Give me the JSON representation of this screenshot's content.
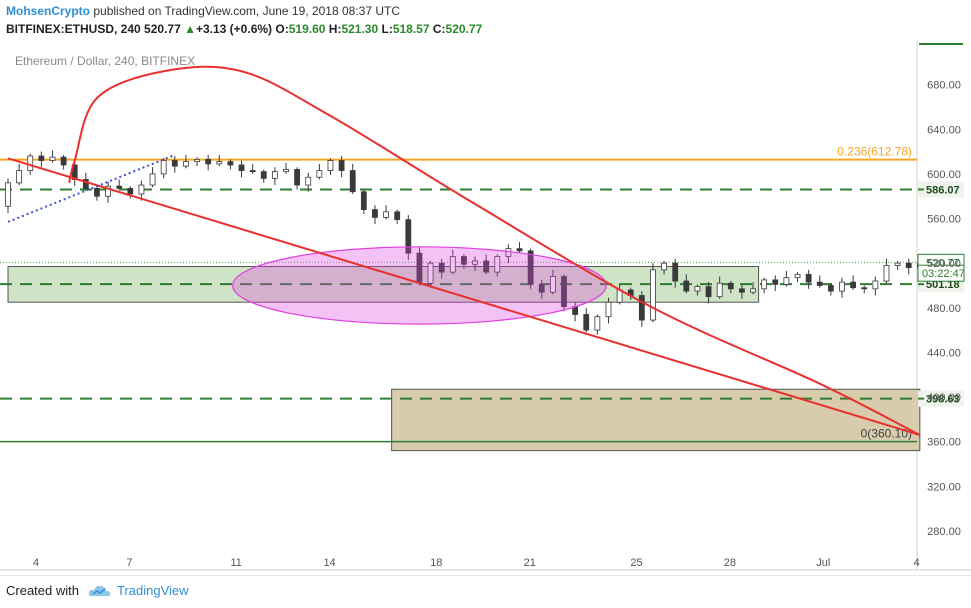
{
  "header": {
    "author": "MohsenCrypto",
    "published": "published on TradingView.com, June 19, 2018 08:37 UTC",
    "symbol": "BITFINEX:ETHUSD, 240",
    "last": "520.77",
    "change": "+3.13 (+0.6%)",
    "o_label": "O:",
    "o": "519.60",
    "h_label": "H:",
    "h": "521.30",
    "l_label": "L:",
    "l": "518.57",
    "c_label": "C:",
    "c": "520.77"
  },
  "footer": {
    "created_with": "Created with",
    "brand": "TradingView"
  },
  "colors": {
    "up": "#2a8a2a",
    "fib": "#f5a623",
    "green_line": "#2f7d32",
    "red": "#e8302e",
    "ellipse": "#e040e0",
    "dotted": "#3f4fd6",
    "zone_green": "#cfe3c6",
    "zone_tan": "#d9ccac",
    "label_dark": "#1d4b1e",
    "price_bg": "#1e6b2a"
  },
  "chart_data": {
    "type": "candlestick",
    "title": "Ethereum / Dollar, 240, BITFINEX",
    "ylim": [
      245,
      720
    ],
    "xlim": [
      0,
      82
    ],
    "y_ticks": [
      280,
      320,
      360,
      400,
      440,
      480,
      520,
      560,
      600,
      640,
      680
    ],
    "x_ticks": [
      {
        "label": "4",
        "x": 0
      },
      {
        "label": "7",
        "x": 7
      },
      {
        "label": "11",
        "x": 15
      },
      {
        "label": "14",
        "x": 22
      },
      {
        "label": "18",
        "x": 30
      },
      {
        "label": "21",
        "x": 37
      },
      {
        "label": "25",
        "x": 45
      },
      {
        "label": "28",
        "x": 52
      },
      {
        "label": "Jul",
        "x": 59
      },
      {
        "label": "4",
        "x": 66
      }
    ],
    "closes": [
      571,
      592,
      603,
      616,
      612,
      615,
      608,
      595,
      587,
      580,
      589,
      587,
      582,
      590,
      600,
      612,
      607,
      611,
      613,
      609,
      611,
      608,
      603,
      602,
      596,
      602,
      604,
      590,
      597,
      603,
      612,
      603,
      584,
      568,
      561,
      566,
      559,
      529,
      502,
      520,
      512,
      526,
      519,
      522,
      512,
      526,
      533,
      531,
      501,
      494,
      508,
      481,
      474,
      460,
      472,
      485,
      496,
      491,
      469,
      514,
      520,
      504,
      495,
      499,
      490,
      502,
      497,
      494,
      497,
      505,
      501,
      507,
      510,
      503,
      500,
      495,
      503,
      498,
      497,
      504,
      518,
      520,
      516,
      520,
      521
    ],
    "levels": [
      {
        "value": 612.78,
        "label": "0.236(612.78)",
        "style": "fib"
      },
      {
        "value": 586.07,
        "label": "586.07",
        "style": "dashed"
      },
      {
        "value": 501.18,
        "label": "501.18",
        "style": "dashed"
      },
      {
        "value": 398.63,
        "label": "398.63",
        "style": "dashed"
      },
      {
        "value": 360.1,
        "label": "0(360.10)",
        "style": "solid"
      }
    ],
    "current_price": {
      "value": 520.77,
      "label": "520.77"
    },
    "countdown": {
      "value": 511,
      "label": "03:22:47"
    },
    "zones": [
      {
        "x0": 0,
        "x1": 67.5,
        "y0": 485,
        "y1": 517,
        "kind": "green"
      },
      {
        "x0": 34.5,
        "x1": 82,
        "y0": 352,
        "y1": 407,
        "kind": "tan"
      }
    ],
    "ellipse": {
      "cx": 37,
      "cy": 500,
      "rx": 15,
      "ry": 33
    },
    "trendline": {
      "points": [
        [
          0,
          614
        ],
        [
          82,
          366
        ]
      ]
    },
    "dotted_line": {
      "points": [
        [
          0,
          557
        ],
        [
          15,
          617
        ]
      ]
    },
    "arc": {
      "points": [
        [
          5.5,
          592
        ],
        [
          6,
          612
        ],
        [
          8,
          668
        ],
        [
          14,
          692
        ],
        [
          21,
          692
        ],
        [
          29,
          652
        ],
        [
          42,
          573
        ],
        [
          58,
          480
        ],
        [
          73,
          412
        ],
        [
          82,
          366
        ]
      ]
    }
  }
}
